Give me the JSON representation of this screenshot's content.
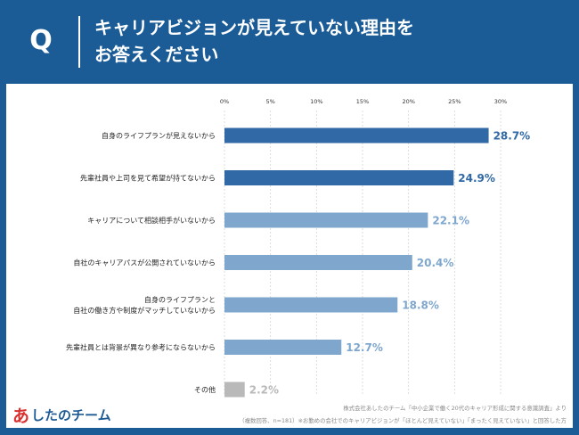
{
  "header": {
    "q_label": "Q",
    "title_line1": "キャリアビジョンが見えていない理由を",
    "title_line2": "お答えください"
  },
  "colors": {
    "background": "#1b5c97",
    "bar_dark": "#3069a6",
    "bar_light": "#7fa7ce",
    "bar_gray": "#b9b9b9"
  },
  "chart_data": {
    "type": "bar",
    "orientation": "horizontal",
    "title": "",
    "xlabel": "",
    "ylabel": "",
    "xlim": [
      0,
      30
    ],
    "ticks": [
      "0%",
      "5%",
      "10%",
      "15%",
      "20%",
      "25%",
      "30%"
    ],
    "tick_values": [
      0,
      5,
      10,
      15,
      20,
      25,
      30
    ],
    "grid": true,
    "categories": [
      [
        "自身のライフプランが見えないから"
      ],
      [
        "先輩社員や上司を見て希望が持てないから"
      ],
      [
        "キャリアについて相談相手がいないから"
      ],
      [
        "自社のキャリアパスが公開されていないから"
      ],
      [
        "自身のライフプランと",
        "自社の働き方や制度がマッチしていないから"
      ],
      [
        "先輩社員とは背景が異なり参考にならないから"
      ],
      [
        "その他"
      ]
    ],
    "values": [
      28.7,
      24.9,
      22.1,
      20.4,
      18.8,
      12.7,
      2.2
    ],
    "value_labels": [
      "28.7%",
      "24.9%",
      "22.1%",
      "20.4%",
      "18.8%",
      "12.7%",
      "2.2%"
    ],
    "bar_colors": [
      "#3069a6",
      "#3069a6",
      "#7fa7ce",
      "#7fa7ce",
      "#7fa7ce",
      "#7fa7ce",
      "#b9b9b9"
    ]
  },
  "footer": {
    "logo_mark": "あ",
    "logo_text": "したのチーム",
    "source_line1": "株式会社あしたのチーム「中小企業で働く20代のキャリア形成に関する意識調査」より",
    "source_line2": "（複数回答、n=181）※お勤めの会社でのキャリアビジョンが「ほとんど見えていない」「まったく見えていない」と回答した方"
  }
}
